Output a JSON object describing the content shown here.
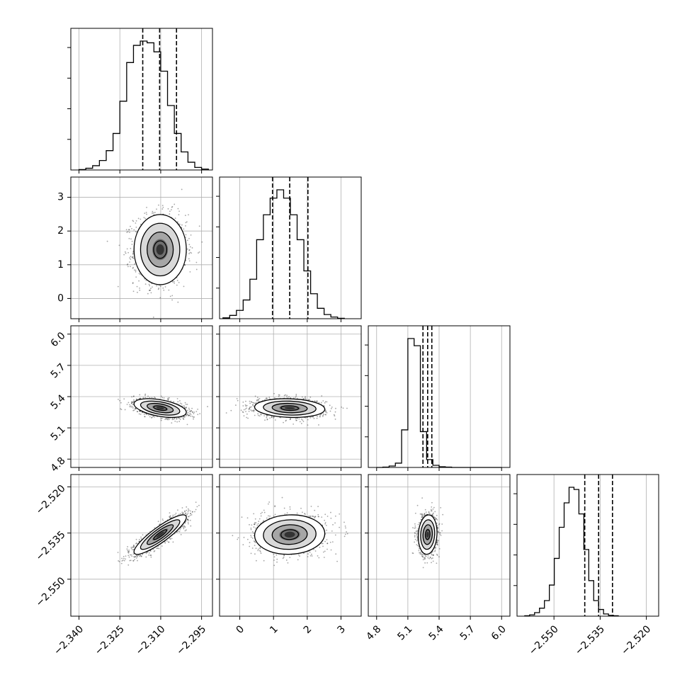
{
  "chart_data": {
    "type": "corner",
    "grid": true,
    "parameters": [
      {
        "range": [
          -2.343,
          -2.291
        ],
        "ticks": [
          -2.34,
          -2.325,
          -2.31,
          -2.295
        ],
        "tick_labels": [
          "−2.340",
          "−2.325",
          "−2.310",
          "−2.295"
        ]
      },
      {
        "range": [
          -0.6,
          3.6
        ],
        "ticks": [
          0,
          1,
          2,
          3
        ],
        "tick_labels": [
          "0",
          "1",
          "2",
          "3"
        ]
      },
      {
        "range": [
          4.72,
          6.08
        ],
        "ticks": [
          4.8,
          5.1,
          5.4,
          5.7,
          6.0
        ],
        "tick_labels": [
          "4.8",
          "5.1",
          "5.4",
          "5.7",
          "6.0"
        ]
      },
      {
        "range": [
          -2.562,
          -2.516
        ],
        "ticks": [
          -2.55,
          -2.535,
          -2.52
        ],
        "tick_labels": [
          "−2.550",
          "−2.535",
          "−2.520"
        ]
      }
    ],
    "marginals": [
      {
        "param": 0,
        "quantiles": [
          -2.3166,
          -2.3104,
          -2.3042
        ],
        "bins_start": -2.34,
        "bin_width": 0.0025,
        "counts": [
          1,
          4,
          10,
          22,
          45,
          85,
          160,
          250,
          290,
          300,
          296,
          275,
          230,
          150,
          85,
          42,
          18,
          6,
          2
        ]
      },
      {
        "param": 1,
        "quantiles": [
          0.97,
          1.48,
          2.02
        ],
        "bins_start": -0.5,
        "bin_width": 0.2,
        "counts": [
          2,
          8,
          20,
          45,
          95,
          190,
          250,
          290,
          310,
          290,
          250,
          190,
          115,
          60,
          25,
          10,
          4,
          1
        ]
      },
      {
        "param": 2,
        "quantiles": [
          5.245,
          5.29,
          5.33
        ],
        "bins_start": 4.8,
        "bin_width": 0.06,
        "counts": [
          0,
          1,
          4,
          12,
          105,
          360,
          340,
          100,
          22,
          6,
          2,
          1,
          0,
          0,
          0,
          0,
          0,
          0,
          0,
          0
        ]
      },
      {
        "param": 3,
        "quantiles": [
          -2.54,
          -2.5355,
          -2.531
        ],
        "bins_start": -2.5595,
        "bin_width": 0.0016,
        "counts": [
          1,
          3,
          8,
          18,
          35,
          70,
          130,
          200,
          255,
          290,
          285,
          230,
          150,
          80,
          35,
          15,
          5,
          2,
          1
        ]
      }
    ],
    "joint": [
      {
        "x": 0,
        "y": 1,
        "center": [
          -2.3102,
          1.45
        ],
        "sd": [
          0.0048,
          0.52
        ],
        "rho": 0.0
      },
      {
        "x": 0,
        "y": 2,
        "center": [
          -2.3102,
          5.29
        ],
        "sd": [
          0.0048,
          0.045
        ],
        "rho": -0.45
      },
      {
        "x": 1,
        "y": 2,
        "center": [
          1.48,
          5.29
        ],
        "sd": [
          0.52,
          0.045
        ],
        "rho": -0.12
      },
      {
        "x": 0,
        "y": 3,
        "center": [
          -2.3102,
          -2.5355
        ],
        "sd": [
          0.0048,
          0.0032
        ],
        "rho": 0.88
      },
      {
        "x": 1,
        "y": 3,
        "center": [
          1.48,
          -2.5355
        ],
        "sd": [
          0.52,
          0.0032
        ],
        "rho": 0.05
      },
      {
        "x": 2,
        "y": 3,
        "center": [
          5.29,
          -2.5355
        ],
        "sd": [
          0.045,
          0.0032
        ],
        "rho": 0.1
      }
    ],
    "contour_levels_sigma": [
      0.5,
      1.0,
      1.5,
      2.0
    ]
  }
}
